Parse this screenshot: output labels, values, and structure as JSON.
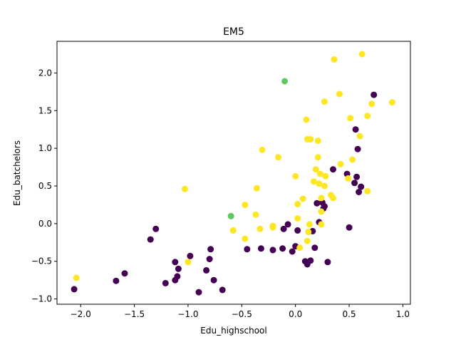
{
  "chart_data": {
    "type": "scatter",
    "title": "EM5",
    "xlabel": "Edu_highschool",
    "ylabel": "Edu_batchelors",
    "xlim": [
      -2.22,
      1.07
    ],
    "ylim": [
      -1.07,
      2.42
    ],
    "xticks": [
      -2.0,
      -1.5,
      -1.0,
      -0.5,
      0.0,
      0.5,
      1.0
    ],
    "xtick_labels": [
      "−2.0",
      "−1.5",
      "−1.0",
      "−0.5",
      "0.0",
      "0.5",
      "1.0"
    ],
    "yticks": [
      -1.0,
      -0.5,
      0.0,
      0.5,
      1.0,
      1.5,
      2.0
    ],
    "ytick_labels": [
      "−1.0",
      "−0.5",
      "0.0",
      "0.5",
      "1.0",
      "1.5",
      "2.0"
    ],
    "grid": false,
    "colors": {
      "cluster_0": "#440154",
      "cluster_1": "#5ec962",
      "cluster_2": "#fde725"
    },
    "series": [
      {
        "color_key": "cluster_0",
        "points": [
          [
            -2.06,
            -0.87
          ],
          [
            -1.67,
            -0.76
          ],
          [
            -1.59,
            -0.66
          ],
          [
            -1.35,
            -0.21
          ],
          [
            -1.3,
            -0.07
          ],
          [
            -1.21,
            -0.79
          ],
          [
            -1.12,
            -0.51
          ],
          [
            -1.12,
            -0.75
          ],
          [
            -1.1,
            -0.7
          ],
          [
            -1.09,
            -0.6
          ],
          [
            -0.98,
            -0.43
          ],
          [
            -0.9,
            -0.91
          ],
          [
            -0.83,
            -0.62
          ],
          [
            -0.8,
            -0.47
          ],
          [
            -0.79,
            -0.34
          ],
          [
            -0.76,
            -0.75
          ],
          [
            -0.68,
            -0.88
          ],
          [
            -0.45,
            -0.34
          ],
          [
            -0.32,
            -0.33
          ],
          [
            -0.21,
            -0.35
          ],
          [
            -0.12,
            -0.33
          ],
          [
            -0.11,
            -0.07
          ],
          [
            -0.07,
            -0.01
          ],
          [
            -0.03,
            -0.37
          ],
          [
            0.0,
            -0.3
          ],
          [
            0.02,
            -0.09
          ],
          [
            0.09,
            -0.5
          ],
          [
            0.11,
            -0.54
          ],
          [
            0.14,
            -0.49
          ],
          [
            0.16,
            -0.1
          ],
          [
            0.18,
            -0.32
          ],
          [
            0.2,
            0.27
          ],
          [
            0.22,
            0.02
          ],
          [
            0.25,
            0.28
          ],
          [
            0.26,
            0.2
          ],
          [
            0.27,
            0.23
          ],
          [
            0.3,
            -0.51
          ],
          [
            0.35,
            0.72
          ],
          [
            0.48,
            0.66
          ],
          [
            0.5,
            -0.05
          ],
          [
            0.55,
            0.54
          ],
          [
            0.56,
            1.25
          ],
          [
            0.57,
            0.62
          ],
          [
            0.58,
            0.99
          ],
          [
            0.59,
            0.42
          ],
          [
            0.61,
            0.49
          ],
          [
            0.73,
            1.71
          ]
        ]
      },
      {
        "color_key": "cluster_1",
        "points": [
          [
            -0.6,
            0.1
          ],
          [
            -0.1,
            1.89
          ]
        ]
      },
      {
        "color_key": "cluster_2",
        "points": [
          [
            -2.04,
            -0.72
          ],
          [
            -1.03,
            0.46
          ],
          [
            -1.0,
            -0.51
          ],
          [
            -0.58,
            -0.09
          ],
          [
            -0.47,
            0.25
          ],
          [
            -0.47,
            -0.2
          ],
          [
            -0.36,
            0.47
          ],
          [
            -0.37,
            0.12
          ],
          [
            -0.31,
            0.98
          ],
          [
            -0.33,
            -0.07
          ],
          [
            -0.21,
            -0.03
          ],
          [
            -0.21,
            -0.05
          ],
          [
            -0.16,
            0.88
          ],
          [
            0.0,
            0.63
          ],
          [
            0.02,
            0.26
          ],
          [
            0.02,
            0.07
          ],
          [
            0.04,
            -0.32
          ],
          [
            0.07,
            0.33
          ],
          [
            0.1,
            1.38
          ],
          [
            0.11,
            1.12
          ],
          [
            0.14,
            1.12
          ],
          [
            0.11,
            -0.23
          ],
          [
            0.12,
            -0.11
          ],
          [
            0.13,
            -0.01
          ],
          [
            0.17,
            0.56
          ],
          [
            0.19,
            0.72
          ],
          [
            0.21,
            1.1
          ],
          [
            0.21,
            0.88
          ],
          [
            0.22,
            0.53
          ],
          [
            0.23,
            0.66
          ],
          [
            0.24,
            0.34
          ],
          [
            0.24,
            0.16
          ],
          [
            0.24,
            -0.01
          ],
          [
            0.27,
            1.62
          ],
          [
            0.27,
            0.5
          ],
          [
            0.28,
            0.63
          ],
          [
            0.33,
            0.38
          ],
          [
            0.35,
            0.34
          ],
          [
            0.36,
            2.18
          ],
          [
            0.41,
            1.72
          ],
          [
            0.42,
            0.79
          ],
          [
            0.49,
            0.6
          ],
          [
            0.51,
            1.4
          ],
          [
            0.53,
            0.85
          ],
          [
            0.6,
            1.16
          ],
          [
            0.62,
            2.25
          ],
          [
            0.67,
            1.43
          ],
          [
            0.67,
            0.43
          ],
          [
            0.71,
            1.59
          ],
          [
            0.9,
            1.61
          ]
        ]
      }
    ]
  }
}
